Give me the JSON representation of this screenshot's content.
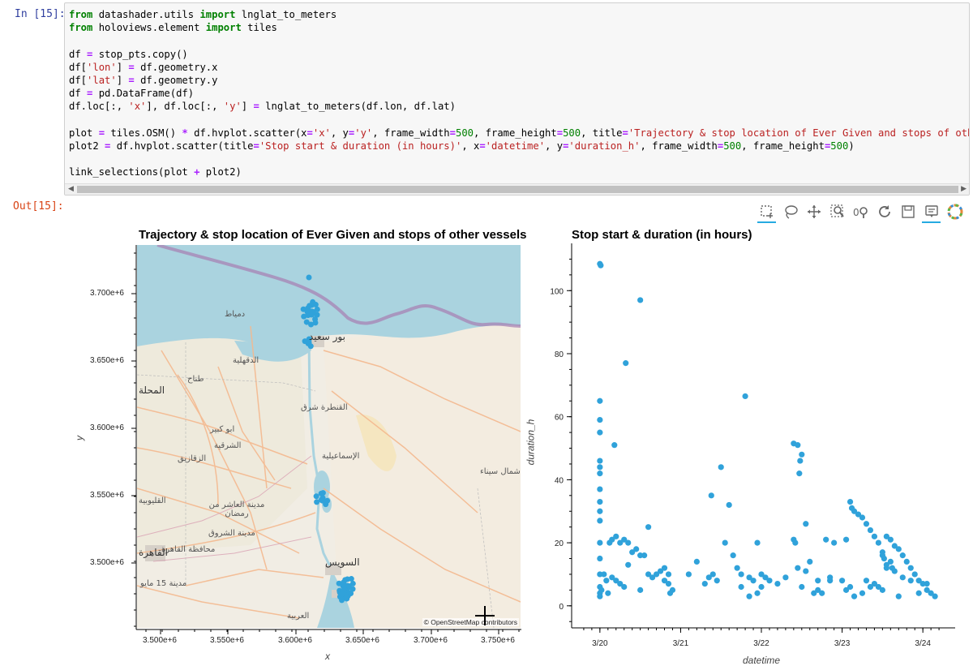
{
  "in_prompt": "In [15]:",
  "out_prompt": "Out[15]:",
  "code_lines": [
    [
      {
        "t": "from",
        "c": "kw"
      },
      {
        "t": " datashader.utils "
      },
      {
        "t": "import",
        "c": "kw"
      },
      {
        "t": " lnglat_to_meters"
      }
    ],
    [
      {
        "t": "from",
        "c": "kw"
      },
      {
        "t": " holoviews.element "
      },
      {
        "t": "import",
        "c": "kw"
      },
      {
        "t": " tiles"
      }
    ],
    [],
    [
      {
        "t": "df "
      },
      {
        "t": "=",
        "c": "op"
      },
      {
        "t": " stop_pts.copy()"
      }
    ],
    [
      {
        "t": "df["
      },
      {
        "t": "'lon'",
        "c": "str"
      },
      {
        "t": "] "
      },
      {
        "t": "=",
        "c": "op"
      },
      {
        "t": " df.geometry.x"
      }
    ],
    [
      {
        "t": "df["
      },
      {
        "t": "'lat'",
        "c": "str"
      },
      {
        "t": "] "
      },
      {
        "t": "=",
        "c": "op"
      },
      {
        "t": " df.geometry.y"
      }
    ],
    [
      {
        "t": "df "
      },
      {
        "t": "=",
        "c": "op"
      },
      {
        "t": " pd.DataFrame(df)"
      }
    ],
    [
      {
        "t": "df.loc[:, "
      },
      {
        "t": "'x'",
        "c": "str"
      },
      {
        "t": "], df.loc[:, "
      },
      {
        "t": "'y'",
        "c": "str"
      },
      {
        "t": "] "
      },
      {
        "t": "=",
        "c": "op"
      },
      {
        "t": " lnglat_to_meters(df.lon, df.lat)"
      }
    ],
    [],
    [
      {
        "t": "plot "
      },
      {
        "t": "=",
        "c": "op"
      },
      {
        "t": " tiles.OSM() "
      },
      {
        "t": "*",
        "c": "op"
      },
      {
        "t": " df.hvplot.scatter(x"
      },
      {
        "t": "=",
        "c": "op"
      },
      {
        "t": "'x'",
        "c": "str"
      },
      {
        "t": ", y"
      },
      {
        "t": "=",
        "c": "op"
      },
      {
        "t": "'y'",
        "c": "str"
      },
      {
        "t": ", frame_width"
      },
      {
        "t": "=",
        "c": "op"
      },
      {
        "t": "500",
        "c": "num"
      },
      {
        "t": ", frame_height"
      },
      {
        "t": "=",
        "c": "op"
      },
      {
        "t": "500",
        "c": "num"
      },
      {
        "t": ", title"
      },
      {
        "t": "=",
        "c": "op"
      },
      {
        "t": "'Trajectory & stop location of Ever Given and stops of othe",
        "c": "str"
      }
    ],
    [
      {
        "t": "plot2 "
      },
      {
        "t": "=",
        "c": "op"
      },
      {
        "t": " df.hvplot.scatter(title"
      },
      {
        "t": "=",
        "c": "op"
      },
      {
        "t": "'Stop start & duration (in hours)'",
        "c": "str"
      },
      {
        "t": ", x"
      },
      {
        "t": "=",
        "c": "op"
      },
      {
        "t": "'datetime'",
        "c": "str"
      },
      {
        "t": ", y"
      },
      {
        "t": "=",
        "c": "op"
      },
      {
        "t": "'duration_h'",
        "c": "str"
      },
      {
        "t": ", frame_width"
      },
      {
        "t": "=",
        "c": "op"
      },
      {
        "t": "500",
        "c": "num"
      },
      {
        "t": ", frame_height"
      },
      {
        "t": "=",
        "c": "op"
      },
      {
        "t": "500",
        "c": "num"
      },
      {
        "t": ")"
      }
    ],
    [],
    [
      {
        "t": "link_selections(plot "
      },
      {
        "t": "+",
        "c": "op"
      },
      {
        "t": " plot2)"
      }
    ]
  ],
  "toolbar": [
    "box-select-icon",
    "lasso-select-icon",
    "pan-icon",
    "box-zoom-icon",
    "wheel-zoom-icon",
    "reset-icon",
    "save-icon",
    "hover-icon",
    "bokeh-logo-icon"
  ],
  "map_plot": {
    "title": "Trajectory & stop location of Ever Given and stops of other vessels",
    "xlabel": "x",
    "ylabel": "y",
    "xticks": [
      "3.500e+6",
      "3.550e+6",
      "3.600e+6",
      "3.650e+6",
      "3.700e+6",
      "3.750e+6"
    ],
    "yticks": [
      "3.700e+6",
      "3.650e+6",
      "3.600e+6",
      "3.550e+6",
      "3.500e+6"
    ],
    "attribution": "© OpenStreetMap contributors",
    "place_labels": [
      "دمياط",
      "بور سعيد",
      "الدقهلية",
      "طناح",
      "المحلة",
      "القنطرة شرق",
      "ابو كبير",
      "الشرقية",
      "الزقازيق",
      "الإسماعيلية",
      "شمال سيناء",
      "القليوبية",
      "مدينة العاشر من رمضان",
      "مدينة الشروق",
      "محافظة القاهرة",
      "القاهرة",
      "السويس",
      "مدينة 15 مايو",
      "العربية"
    ]
  },
  "scatter_plot": {
    "title": "Stop start & duration (in hours)",
    "xlabel": "datetime",
    "ylabel": "duration_h",
    "color": "#30a2da",
    "chart_data": {
      "type": "scatter",
      "xlabel": "datetime",
      "ylabel": "duration_h",
      "x_ticks": [
        "3/20",
        "3/21",
        "3/22",
        "3/23",
        "3/24"
      ],
      "y_ticks": [
        "0",
        "20",
        "40",
        "60",
        "80",
        "100"
      ],
      "xlim": [
        19.65,
        24.4
      ],
      "ylim": [
        -7,
        115
      ],
      "x_unit": "day of March",
      "points": [
        [
          20.0,
          108.5
        ],
        [
          20.01,
          108
        ],
        [
          20.5,
          97
        ],
        [
          20.32,
          77
        ],
        [
          20.18,
          51
        ],
        [
          20.0,
          65
        ],
        [
          20.0,
          59
        ],
        [
          20.0,
          55
        ],
        [
          20.0,
          46
        ],
        [
          20.0,
          44
        ],
        [
          20.0,
          42
        ],
        [
          20.0,
          37
        ],
        [
          20.0,
          33
        ],
        [
          20.0,
          30
        ],
        [
          20.0,
          27
        ],
        [
          20.0,
          20
        ],
        [
          20.0,
          15
        ],
        [
          20.0,
          10
        ],
        [
          20.0,
          6
        ],
        [
          20.0,
          4
        ],
        [
          20.0,
          3
        ],
        [
          20.02,
          5
        ],
        [
          20.05,
          10
        ],
        [
          20.08,
          8
        ],
        [
          20.1,
          4
        ],
        [
          20.12,
          20
        ],
        [
          20.15,
          21
        ],
        [
          20.2,
          22
        ],
        [
          20.25,
          20
        ],
        [
          20.3,
          21
        ],
        [
          20.35,
          20
        ],
        [
          20.15,
          9
        ],
        [
          20.2,
          8
        ],
        [
          20.25,
          7
        ],
        [
          20.3,
          6
        ],
        [
          20.35,
          13
        ],
        [
          20.4,
          17
        ],
        [
          20.45,
          18
        ],
        [
          20.5,
          16
        ],
        [
          20.55,
          16
        ],
        [
          20.6,
          25
        ],
        [
          20.6,
          10
        ],
        [
          20.65,
          9
        ],
        [
          20.7,
          10
        ],
        [
          20.75,
          11
        ],
        [
          20.8,
          8
        ],
        [
          20.85,
          7
        ],
        [
          20.9,
          5
        ],
        [
          20.87,
          4
        ],
        [
          20.5,
          5
        ],
        [
          20.8,
          12
        ],
        [
          20.85,
          10
        ],
        [
          21.1,
          10
        ],
        [
          21.2,
          14
        ],
        [
          21.3,
          7
        ],
        [
          21.35,
          9
        ],
        [
          21.4,
          10
        ],
        [
          21.45,
          8
        ],
        [
          21.38,
          35
        ],
        [
          21.5,
          44
        ],
        [
          21.6,
          32
        ],
        [
          21.55,
          20
        ],
        [
          21.65,
          16
        ],
        [
          21.7,
          12
        ],
        [
          21.75,
          10
        ],
        [
          21.8,
          66.5
        ],
        [
          21.85,
          9
        ],
        [
          21.9,
          8
        ],
        [
          21.95,
          20
        ],
        [
          22.0,
          10
        ],
        [
          22.05,
          9
        ],
        [
          22.1,
          8
        ],
        [
          21.75,
          6
        ],
        [
          21.85,
          3
        ],
        [
          22.4,
          51.5
        ],
        [
          22.45,
          51
        ],
        [
          22.5,
          48
        ],
        [
          22.48,
          46
        ],
        [
          22.47,
          42
        ],
        [
          22.4,
          21
        ],
        [
          22.42,
          20
        ],
        [
          22.45,
          12
        ],
        [
          22.55,
          26
        ],
        [
          22.6,
          14
        ],
        [
          22.65,
          4
        ],
        [
          22.7,
          5
        ],
        [
          22.75,
          4
        ],
        [
          22.8,
          21
        ],
        [
          22.85,
          8
        ],
        [
          22.9,
          20
        ],
        [
          22.5,
          6
        ],
        [
          22.55,
          11
        ],
        [
          22.7,
          8
        ],
        [
          22.85,
          9
        ],
        [
          23.0,
          8
        ],
        [
          23.05,
          5
        ],
        [
          23.1,
          6
        ],
        [
          23.15,
          3
        ],
        [
          23.05,
          21
        ],
        [
          23.1,
          33
        ],
        [
          23.12,
          31
        ],
        [
          23.15,
          30
        ],
        [
          23.2,
          29
        ],
        [
          23.25,
          28
        ],
        [
          23.3,
          26
        ],
        [
          23.35,
          24
        ],
        [
          23.4,
          22
        ],
        [
          23.45,
          20
        ],
        [
          23.5,
          17
        ],
        [
          23.55,
          22
        ],
        [
          23.6,
          21
        ],
        [
          23.65,
          19
        ],
        [
          23.7,
          18
        ],
        [
          23.75,
          16
        ],
        [
          23.8,
          14
        ],
        [
          23.85,
          12
        ],
        [
          23.9,
          10
        ],
        [
          23.95,
          8
        ],
        [
          24.0,
          7
        ],
        [
          24.05,
          5
        ],
        [
          24.1,
          4
        ],
        [
          24.15,
          3
        ],
        [
          23.5,
          16
        ],
        [
          23.52,
          15
        ],
        [
          23.55,
          13
        ],
        [
          23.6,
          14
        ],
        [
          23.62,
          12
        ],
        [
          23.65,
          11
        ],
        [
          23.4,
          7
        ],
        [
          23.45,
          6
        ],
        [
          23.5,
          5
        ],
        [
          23.55,
          12
        ],
        [
          23.7,
          3
        ],
        [
          23.75,
          9
        ],
        [
          23.85,
          8
        ],
        [
          23.95,
          4
        ],
        [
          24.05,
          7
        ],
        [
          23.3,
          8
        ],
        [
          23.25,
          4
        ],
        [
          23.35,
          6
        ],
        [
          22.3,
          9
        ],
        [
          22.2,
          7
        ],
        [
          22.0,
          6
        ],
        [
          21.95,
          4
        ]
      ]
    }
  }
}
